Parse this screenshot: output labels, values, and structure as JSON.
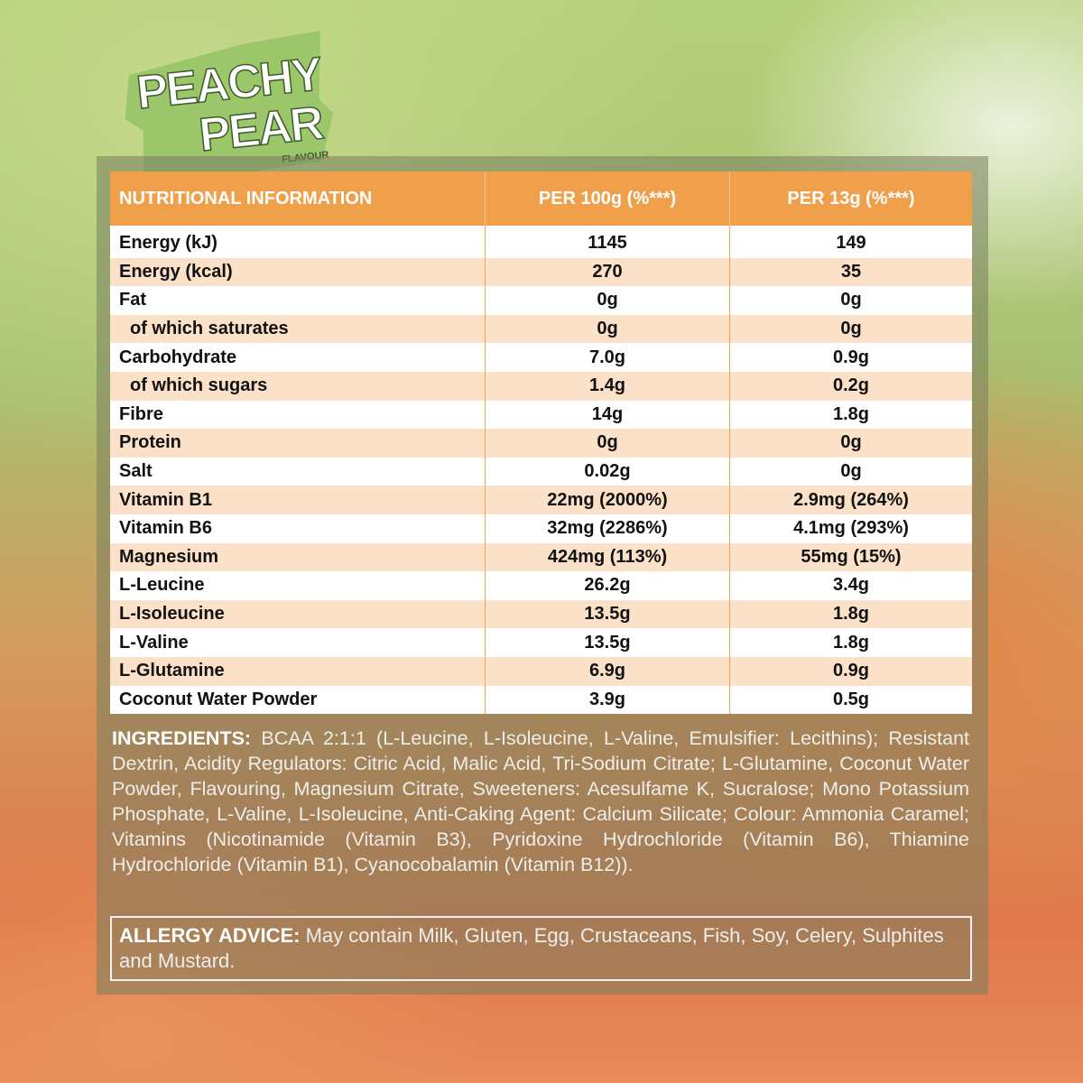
{
  "logo": {
    "line1": "PEACHY",
    "line2": "PEAR",
    "sub": "FLAVOUR"
  },
  "table": {
    "header": [
      "NUTRITIONAL INFORMATION",
      "PER 100g (%***)",
      "PER 13g (%***)"
    ],
    "rows": [
      [
        "Energy (kJ)",
        "1145",
        "149"
      ],
      [
        "Energy (kcal)",
        "270",
        "35"
      ],
      [
        "Fat",
        "0g",
        "0g"
      ],
      [
        "of which saturates",
        "0g",
        "0g"
      ],
      [
        "Carbohydrate",
        "7.0g",
        "0.9g"
      ],
      [
        "of which sugars",
        "1.4g",
        "0.2g"
      ],
      [
        "Fibre",
        "14g",
        "1.8g"
      ],
      [
        "Protein",
        "0g",
        "0g"
      ],
      [
        "Salt",
        "0.02g",
        "0g"
      ],
      [
        "Vitamin B1",
        "22mg (2000%)",
        "2.9mg (264%)"
      ],
      [
        "Vitamin B6",
        "32mg (2286%)",
        "4.1mg (293%)"
      ],
      [
        "Magnesium",
        "424mg (113%)",
        "55mg (15%)"
      ],
      [
        "L-Leucine",
        "26.2g",
        "3.4g"
      ],
      [
        "L-Isoleucine",
        "13.5g",
        "1.8g"
      ],
      [
        "L-Valine",
        "13.5g",
        "1.8g"
      ],
      [
        "L-Glutamine",
        "6.9g",
        "0.9g"
      ],
      [
        "Coconut Water Powder",
        "3.9g",
        "0.5g"
      ]
    ]
  },
  "ingredients": {
    "label": "INGREDIENTS:",
    "text": "BCAA 2:1:1 (L-Leucine, L-Isoleucine, L-Valine, Emulsifier: Lecithins); Resistant Dextrin, Acidity Regulators: Citric Acid, Malic Acid, Tri-Sodium Citrate; L-Glutamine, Coconut Water Powder, Flavouring, Magnesium Citrate, Sweeteners: Acesulfame K, Sucralose; Mono Potassium Phosphate, L-Valine, L-Isoleucine, Anti-Caking Agent: Calcium Silicate; Colour: Ammonia Caramel; Vitamins (Nicotinamide (Vitamin B3), Pyridoxine Hydrochloride (Vitamin B6), Thiamine Hydrochloride (Vitamin B1), Cyanocobalamin (Vitamin B12))."
  },
  "allergy": {
    "label": "ALLERGY ADVICE:",
    "text": "May contain Milk, Gluten, Egg, Crustaceans, Fish, Soy, Celery, Sulphites and Mustard."
  }
}
